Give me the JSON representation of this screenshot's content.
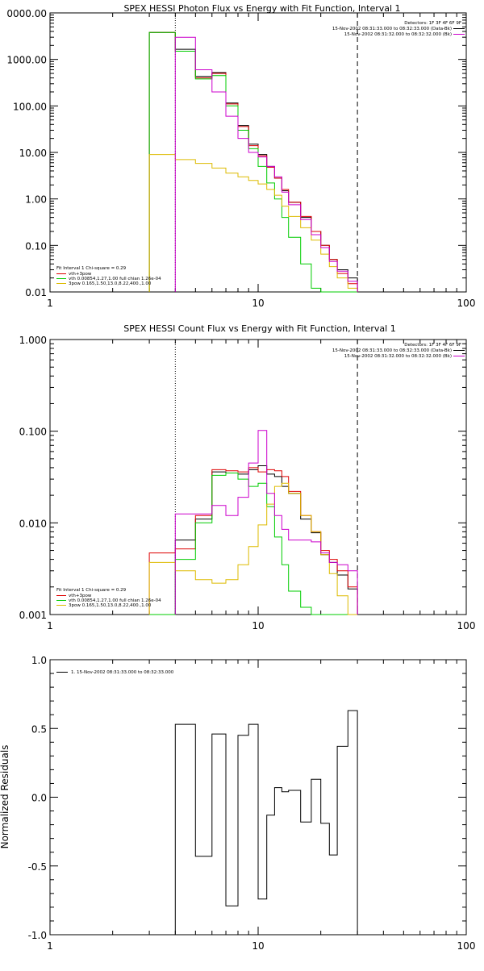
{
  "chart_data": [
    {
      "type": "line",
      "title": "SPEX HESSI Photon Flux vs Energy with Fit Function, Interval 1",
      "xscale": "log",
      "yscale": "log",
      "xlim": [
        1,
        100
      ],
      "ylim": [
        0.01,
        10000
      ],
      "xticks": [
        "1",
        "10",
        "100"
      ],
      "yticks": [
        "0000.00",
        "1000.00",
        "100.00",
        "10.00",
        "1.00",
        "0.10",
        "0.01"
      ],
      "ytick_values": [
        10000,
        1000,
        100,
        10,
        1,
        0.1,
        0.01
      ],
      "fit_range": [
        4.0,
        30.0
      ],
      "legend_top": [
        "Detectors: 1F 3F 4F 6F 9F",
        "15-Nov-2002 08:31:33.000 to 08:32:33.000 (Data-Bk)",
        "15-Nov-2002 08:31:32.000 to 08:32:32.000 (Bk)"
      ],
      "legend_bottom": [
        "Fit Interval 1   Chi-square = 0.29",
        "vth+3pow",
        "vth 0.00854,1.27,1.00  full chian 1.26e-04",
        "3pow 0.165,1.50,13.0,8.22,400.,1.00"
      ],
      "series": [
        {
          "key": "data",
          "color": "#000000",
          "edges": [
            3,
            4,
            5,
            6,
            7,
            8,
            9,
            10,
            11,
            12,
            13,
            14,
            16,
            18,
            20,
            22,
            24,
            27,
            30
          ],
          "values": [
            3800,
            1650,
            430,
            520,
            115,
            38,
            15,
            9,
            5,
            2.8,
            1.5,
            0.85,
            0.4,
            0.2,
            0.1,
            0.05,
            0.03,
            0.02
          ]
        },
        {
          "key": "model",
          "color": "#dd0000",
          "edges": [
            3,
            4,
            5,
            6,
            7,
            8,
            9,
            10,
            11,
            12,
            13,
            14,
            16,
            18,
            20,
            22,
            24,
            27,
            30
          ],
          "values": [
            3800,
            1500,
            400,
            500,
            110,
            36,
            14,
            8.5,
            4.8,
            2.8,
            1.6,
            0.85,
            0.42,
            0.2,
            0.1,
            0.05,
            0.025,
            0.015
          ]
        },
        {
          "key": "vth",
          "color": "#00cc00",
          "edges": [
            3,
            4,
            5,
            6,
            7,
            8,
            9,
            10,
            11,
            12,
            13,
            14,
            16,
            18,
            20,
            22,
            24,
            27,
            30
          ],
          "values": [
            3800,
            1500,
            380,
            450,
            100,
            30,
            12,
            5,
            2.2,
            1,
            0.4,
            0.15,
            0.04,
            0.012,
            0.008,
            0.008,
            0.008,
            0.008
          ]
        },
        {
          "key": "3pow",
          "color": "#ddbb00",
          "edges": [
            3,
            4,
            5,
            6,
            7,
            8,
            9,
            10,
            11,
            12,
            13,
            14,
            16,
            18,
            20,
            22,
            24,
            27,
            30
          ],
          "values": [
            9,
            7,
            5.8,
            4.6,
            3.6,
            3,
            2.5,
            2.1,
            1.6,
            1.2,
            0.7,
            0.42,
            0.24,
            0.13,
            0.065,
            0.035,
            0.02,
            0.012
          ]
        },
        {
          "key": "bk",
          "color": "#cc00cc",
          "edges": [
            4,
            5,
            6,
            7,
            8,
            9,
            10,
            11,
            12,
            13,
            14,
            16,
            18,
            20,
            22,
            24,
            27,
            30
          ],
          "values": [
            3000,
            600,
            200,
            60,
            20,
            10,
            8,
            5,
            3,
            1.4,
            0.75,
            0.36,
            0.17,
            0.09,
            0.045,
            0.028,
            0.017
          ]
        }
      ]
    },
    {
      "type": "line",
      "title": "SPEX HESSI Count Flux vs Energy with Fit Function, Interval 1",
      "xscale": "log",
      "yscale": "log",
      "xlim": [
        1,
        100
      ],
      "ylim": [
        0.001,
        1
      ],
      "xticks": [
        "1",
        "10",
        "100"
      ],
      "yticks": [
        "1.000",
        "0.100",
        "0.010",
        "0.001"
      ],
      "ytick_values": [
        1,
        0.1,
        0.01,
        0.001
      ],
      "fit_range": [
        4.0,
        30.0
      ],
      "legend_top": [
        "Detectors: 1F 3F 4F 6F 9F",
        "15-Nov-2002 08:31:33.000 to 08:32:33.000 (Data-Bk)",
        "15-Nov-2002 08:31:32.000 to 08:32:32.000 (Bk)"
      ],
      "legend_bottom": [
        "Fit Interval 1   Chi-square = 0.29",
        "vth+3pow",
        "vth 0.00854,1.27,1.00  full chian 1.26e-04",
        "3pow 0.165,1.50,13.0,8.22,400.,1.00"
      ],
      "series": [
        {
          "key": "data",
          "color": "#000000",
          "edges": [
            3,
            4,
            5,
            6,
            7,
            8,
            9,
            10,
            11,
            12,
            13,
            14,
            16,
            18,
            20,
            22,
            24,
            27,
            30
          ],
          "values": [
            0.001,
            0.0065,
            0.011,
            0.036,
            0.035,
            0.034,
            0.038,
            0.042,
            0.034,
            0.032,
            0.025,
            0.021,
            0.011,
            0.0078,
            0.0045,
            0.0037,
            0.0027,
            0.0019
          ]
        },
        {
          "key": "model",
          "color": "#dd0000",
          "edges": [
            3,
            4,
            5,
            6,
            7,
            8,
            9,
            10,
            11,
            12,
            13,
            14,
            16,
            18,
            20,
            22,
            24,
            27,
            30
          ],
          "values": [
            0.0047,
            0.0052,
            0.012,
            0.038,
            0.037,
            0.036,
            0.04,
            0.036,
            0.038,
            0.037,
            0.032,
            0.022,
            0.012,
            0.008,
            0.005,
            0.004,
            0.003,
            0.002
          ]
        },
        {
          "key": "vth",
          "color": "#00cc00",
          "edges": [
            3,
            4,
            5,
            6,
            7,
            8,
            9,
            10,
            11,
            12,
            13,
            14,
            16,
            18,
            20,
            22,
            24,
            27,
            30
          ],
          "values": [
            0.001,
            0.004,
            0.01,
            0.033,
            0.035,
            0.03,
            0.025,
            0.027,
            0.015,
            0.007,
            0.0035,
            0.0018,
            0.0012,
            0.001,
            0.001,
            0.001,
            0.001,
            0.001
          ]
        },
        {
          "key": "3pow",
          "color": "#ddbb00",
          "edges": [
            3,
            4,
            5,
            6,
            7,
            8,
            9,
            10,
            11,
            12,
            13,
            14,
            16,
            18,
            20,
            22,
            24,
            27,
            30
          ],
          "values": [
            0.0037,
            0.003,
            0.0024,
            0.0022,
            0.0024,
            0.0035,
            0.0055,
            0.0095,
            0.016,
            0.025,
            0.027,
            0.021,
            0.012,
            0.008,
            0.0045,
            0.0028,
            0.0016,
            0.001
          ]
        },
        {
          "key": "bk",
          "color": "#cc00cc",
          "edges": [
            4,
            5,
            6,
            7,
            8,
            9,
            10,
            11,
            12,
            13,
            14,
            16,
            18,
            20,
            22,
            24,
            27,
            30
          ],
          "values": [
            0.0125,
            0.0125,
            0.0155,
            0.012,
            0.019,
            0.045,
            0.102,
            0.021,
            0.012,
            0.0085,
            0.0065,
            0.0065,
            0.0062,
            0.0047,
            0.0037,
            0.0035,
            0.003
          ]
        }
      ]
    },
    {
      "type": "line",
      "title": "",
      "xscale": "log",
      "yscale": "linear",
      "xlim": [
        1,
        100
      ],
      "ylim": [
        -1,
        1
      ],
      "xticks": [
        "1",
        "10",
        "100"
      ],
      "yticks": [
        "1.0",
        "0.5",
        "0.0",
        "-0.5",
        "-1.0"
      ],
      "ytick_values": [
        1,
        0.5,
        0,
        -0.5,
        -1
      ],
      "ylabel": "Normalized Residuals",
      "legend": [
        "1. 15-Nov-2002 08:31:33.000 to 08:32:33.000"
      ],
      "series": [
        {
          "key": "residuals",
          "color": "#000000",
          "edges": [
            4,
            5,
            6,
            7,
            8,
            9,
            10,
            11,
            12,
            13,
            14,
            16,
            18,
            20,
            22,
            24,
            27,
            30
          ],
          "values": [
            0.53,
            -0.43,
            0.46,
            -0.79,
            0.45,
            0.53,
            -0.74,
            -0.13,
            0.07,
            0.04,
            0.05,
            -0.18,
            0.13,
            -0.19,
            -0.42,
            0.37,
            0.63
          ]
        }
      ]
    }
  ]
}
